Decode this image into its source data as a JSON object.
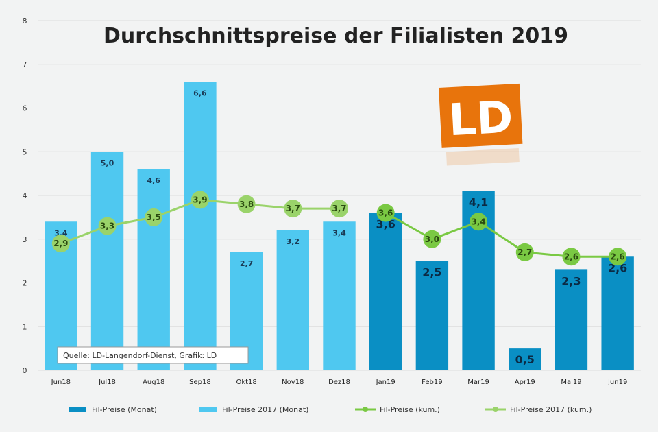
{
  "chart_data": {
    "type": "bar",
    "title": "Durchschnittspreise der Filialisten 2019",
    "source": "Quelle: LD-Langendorf-Dienst, Grafik: LD",
    "logo_text": "LD",
    "categories": [
      "Jun18",
      "Jul18",
      "Aug18",
      "Sep18",
      "Okt18",
      "Nov18",
      "Dez18",
      "Jan19",
      "Feb19",
      "Mar19",
      "Apr19",
      "Mai19",
      "Jun19"
    ],
    "ylim": [
      0,
      8
    ],
    "yticks": [
      0,
      1,
      2,
      3,
      4,
      5,
      6,
      7,
      8
    ],
    "grid": true,
    "legend_position": "bottom",
    "series": [
      {
        "name": "Fil-Preise (Monat)",
        "kind": "bar",
        "color": "#0a8fc4",
        "values": [
          null,
          null,
          null,
          null,
          null,
          null,
          null,
          3.6,
          2.5,
          4.1,
          0.5,
          2.3,
          2.6
        ]
      },
      {
        "name": "Fil-Preise 2017 (Monat)",
        "kind": "bar",
        "color": "#4fc8f0",
        "values": [
          3.4,
          5.0,
          4.6,
          6.6,
          2.7,
          3.2,
          3.4,
          null,
          null,
          null,
          null,
          null,
          null
        ]
      },
      {
        "name": "Fil-Preise (kum.)",
        "kind": "line",
        "color": "#7ac943",
        "values": [
          null,
          null,
          null,
          null,
          null,
          null,
          null,
          3.6,
          3.0,
          3.4,
          2.7,
          2.6,
          2.6
        ]
      },
      {
        "name": "Fil-Preise 2017 (kum.)",
        "kind": "line",
        "color": "#9ad36a",
        "values": [
          2.9,
          3.3,
          3.5,
          3.9,
          3.8,
          3.7,
          3.7,
          null,
          null,
          null,
          null,
          null,
          null
        ]
      }
    ],
    "colors": {
      "grid": "#dcdcdc",
      "bar_border_dark": "#0a7fb0",
      "logo": "#e8740c"
    }
  }
}
